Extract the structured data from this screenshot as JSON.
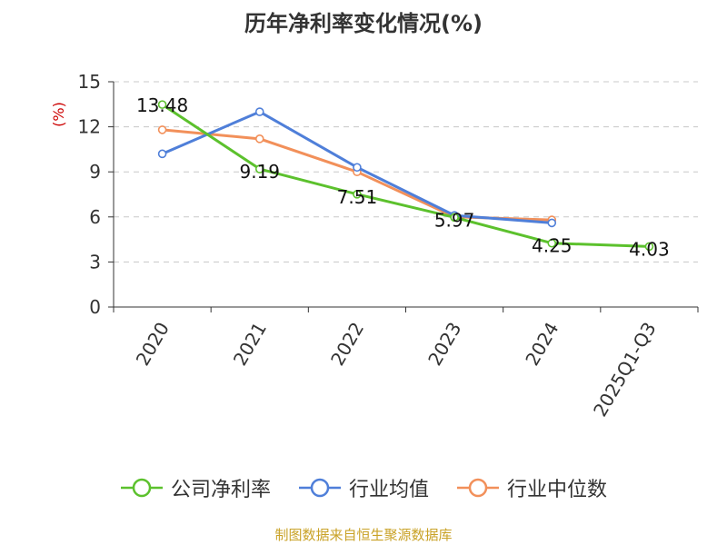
{
  "chart_data": {
    "type": "line",
    "title": "历年净利率变化情况(%)",
    "ylabel": "(%)",
    "categories": [
      "2020",
      "2021",
      "2022",
      "2023",
      "2024",
      "2025Q1-Q3"
    ],
    "yticks": [
      "0",
      "3",
      "6",
      "9",
      "12",
      "15"
    ],
    "ylim": [
      0,
      15
    ],
    "grid": true,
    "legend_position": "bottom",
    "series": [
      {
        "name": "公司净利率",
        "color": "#5cc12d",
        "values": [
          13.48,
          9.19,
          7.51,
          5.97,
          4.25,
          4.03
        ],
        "labels": [
          "13.48",
          "9.19",
          "7.51",
          "5.97",
          "4.25",
          "4.03"
        ]
      },
      {
        "name": "行业均值",
        "color": "#4f7fd9",
        "values": [
          10.2,
          13.0,
          9.3,
          6.1,
          5.6,
          null
        ],
        "labels": []
      },
      {
        "name": "行业中位数",
        "color": "#f2905a",
        "values": [
          11.8,
          11.2,
          9.0,
          6.0,
          5.8,
          null
        ],
        "labels": []
      }
    ],
    "source": "制图数据来自恒生聚源数据库"
  }
}
